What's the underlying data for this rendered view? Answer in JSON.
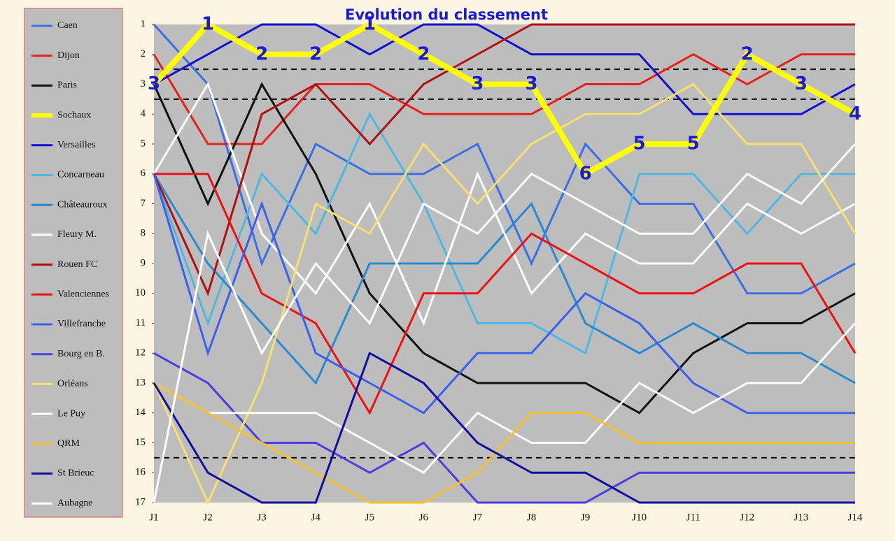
{
  "chart_data": {
    "type": "line",
    "title": "Evolution du classement",
    "categories": [
      "J1",
      "J2",
      "J3",
      "J4",
      "J5",
      "J6",
      "J7",
      "J8",
      "J9",
      "J10",
      "J11",
      "J12",
      "J13",
      "J14"
    ],
    "ylim": [
      17,
      1
    ],
    "yticks": [
      1,
      2,
      3,
      4,
      5,
      6,
      7,
      8,
      9,
      10,
      11,
      12,
      13,
      14,
      15,
      16,
      17
    ],
    "reference_lines": [
      2.5,
      3.5,
      15.5
    ],
    "legend": "left",
    "background": "#bdbdbd",
    "series": [
      {
        "name": "Caen",
        "color": "#3b6fe6",
        "values": [
          1,
          3,
          9,
          5,
          6,
          6,
          5,
          9,
          5,
          7,
          7,
          10,
          10,
          9
        ]
      },
      {
        "name": "Dijon",
        "color": "#e8201a",
        "values": [
          2,
          5,
          5,
          3,
          3,
          4,
          4,
          4,
          3,
          3,
          2,
          3,
          2,
          2
        ]
      },
      {
        "name": "Paris",
        "color": "#111111",
        "values": [
          3,
          7,
          3,
          6,
          10,
          12,
          13,
          13,
          13,
          14,
          12,
          11,
          11,
          10
        ]
      },
      {
        "name": "Sochaux",
        "color": "#ffff00",
        "width": 8,
        "data_labels": true,
        "values": [
          3,
          1,
          2,
          2,
          1,
          2,
          3,
          3,
          6,
          5,
          5,
          2,
          3,
          4
        ]
      },
      {
        "name": "Versailles",
        "color": "#1010d0",
        "values": [
          3,
          2,
          1,
          1,
          2,
          1,
          1,
          2,
          2,
          2,
          4,
          4,
          4,
          3
        ]
      },
      {
        "name": "Concarneau",
        "color": "#4fb8e0",
        "values": [
          6,
          11,
          6,
          8,
          4,
          7,
          11,
          11,
          12,
          6,
          6,
          8,
          6,
          6
        ]
      },
      {
        "name": "Châteauroux",
        "color": "#2a8ad0",
        "values": [
          6,
          9,
          11,
          13,
          9,
          9,
          9,
          7,
          11,
          12,
          11,
          12,
          12,
          13
        ]
      },
      {
        "name": "Fleury M.",
        "color": "#ffffff",
        "values": [
          6,
          3,
          8,
          10,
          7,
          11,
          6,
          10,
          8,
          9,
          9,
          7,
          8,
          7
        ]
      },
      {
        "name": "Rouen FC",
        "color": "#b01010",
        "values": [
          6,
          10,
          4,
          3,
          5,
          3,
          2,
          1,
          1,
          1,
          1,
          1,
          1,
          1
        ]
      },
      {
        "name": "Valenciennes",
        "color": "#f01010",
        "values": [
          6,
          6,
          10,
          11,
          14,
          10,
          10,
          8,
          9,
          10,
          10,
          9,
          9,
          12
        ]
      },
      {
        "name": "Villefranche",
        "color": "#3a60f0",
        "values": [
          6,
          12,
          7,
          12,
          13,
          14,
          12,
          12,
          10,
          11,
          13,
          14,
          14,
          14
        ]
      },
      {
        "name": "Bourg en B.",
        "color": "#4a3ee0",
        "values": [
          12,
          13,
          15,
          15,
          16,
          15,
          17,
          17,
          17,
          16,
          16,
          16,
          16,
          16
        ]
      },
      {
        "name": "Orléans",
        "color": "#f5e070",
        "values": [
          13,
          17,
          13,
          7,
          8,
          5,
          7,
          5,
          4,
          4,
          3,
          5,
          5,
          8
        ]
      },
      {
        "name": "Le Puy",
        "color": "#ffffff",
        "values": [
          13,
          14,
          14,
          14,
          15,
          16,
          14,
          15,
          15,
          13,
          14,
          13,
          13,
          11
        ]
      },
      {
        "name": "QRM",
        "color": "#f5c030",
        "values": [
          13,
          14,
          15,
          16,
          17,
          17,
          16,
          14,
          14,
          15,
          15,
          15,
          15,
          15
        ]
      },
      {
        "name": "St Brieuc",
        "color": "#1010a0",
        "values": [
          13,
          16,
          17,
          17,
          12,
          13,
          15,
          16,
          16,
          17,
          17,
          17,
          17,
          17
        ]
      },
      {
        "name": "Aubagne",
        "color": "#ffffff",
        "values": [
          17,
          8,
          12,
          9,
          11,
          7,
          8,
          6,
          7,
          8,
          8,
          6,
          7,
          5
        ]
      }
    ]
  }
}
